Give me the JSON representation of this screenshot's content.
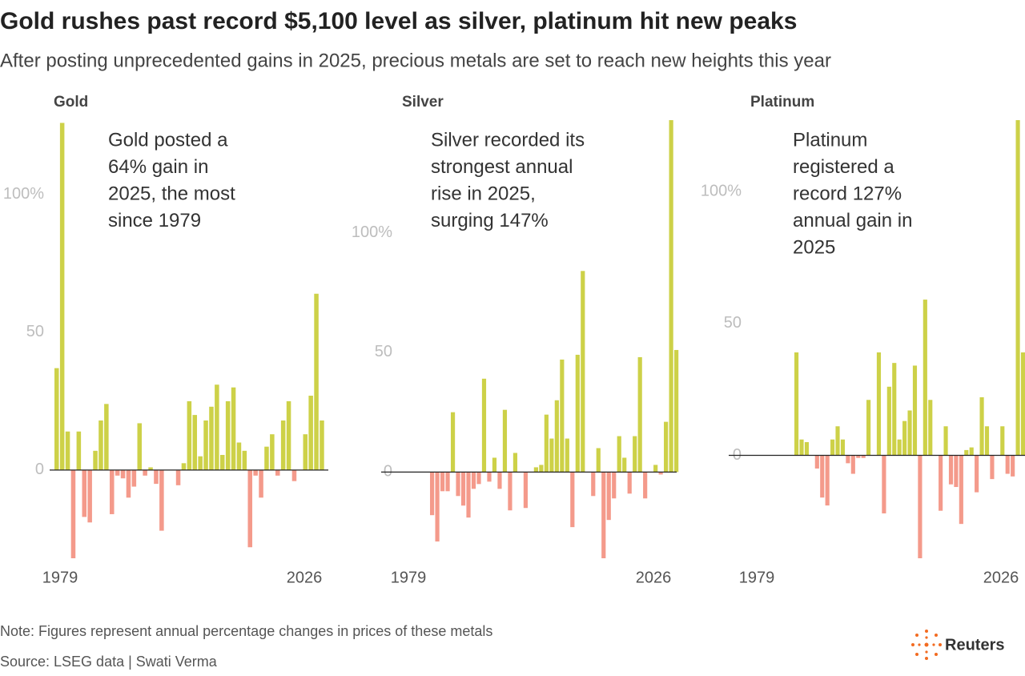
{
  "title": "Gold rushes past record $5,100 level as silver, platinum hit new peaks",
  "subtitle": "After posting unprecedented gains in 2025, precious metals are set to reach new heights this year",
  "note": "Note: Figures represent annual percentage changes in prices of these metals",
  "source": "Source: LSEG data | Swati Verma",
  "brand": "Reuters",
  "chart_data": [
    {
      "type": "bar",
      "title": "Gold",
      "annotation": [
        "Gold posted a",
        "64% gain in",
        "2025, the most",
        "since 1979"
      ],
      "categories": [
        null,
        "1979",
        null,
        null,
        null,
        null,
        null,
        null,
        null,
        null,
        null,
        null,
        null,
        null,
        null,
        null,
        null,
        null,
        null,
        null,
        null,
        null,
        null,
        null,
        null,
        null,
        null,
        null,
        null,
        null,
        null,
        null,
        null,
        null,
        null,
        null,
        null,
        null,
        null,
        null,
        null,
        null,
        null,
        null,
        null,
        null,
        null,
        null,
        "2026"
      ],
      "values": [
        37,
        126,
        14,
        -32,
        14,
        -17,
        -19,
        7,
        18,
        24,
        -16,
        -2,
        -3,
        -10,
        -6,
        17,
        -2,
        1,
        -5,
        -22,
        0,
        0,
        -5.5,
        2.5,
        25,
        20,
        5,
        18,
        23,
        31,
        5.5,
        25,
        30,
        10,
        7,
        -28,
        -2,
        -10,
        8.5,
        13,
        -2,
        18,
        25,
        -4,
        0,
        13,
        27,
        64,
        18
      ],
      "positive_color": "#cdd148",
      "negative_color": "#f49a8b",
      "ylim": [
        -32,
        127
      ],
      "yticks": [
        0,
        50,
        {
          "value": 100,
          "label": "100%"
        }
      ]
    },
    {
      "type": "bar",
      "title": "Silver",
      "annotation": [
        "Silver recorded its",
        "strongest annual",
        "rise in 2025,",
        "surging 147%"
      ],
      "categories": [
        null,
        "1979",
        null,
        null,
        null,
        null,
        null,
        null,
        null,
        null,
        null,
        null,
        null,
        null,
        null,
        null,
        null,
        null,
        null,
        null,
        null,
        null,
        null,
        null,
        null,
        null,
        null,
        null,
        null,
        null,
        null,
        null,
        null,
        null,
        null,
        null,
        null,
        null,
        null,
        null,
        null,
        null,
        null,
        null,
        null,
        null,
        null,
        null,
        "2026"
      ],
      "values": [
        null,
        -18,
        -29,
        -8,
        -8,
        25,
        -10,
        -14,
        -19,
        -7,
        -5,
        39,
        -4,
        6,
        -7,
        26,
        -16,
        8,
        0,
        -15,
        0,
        2,
        3,
        24,
        14,
        30,
        47,
        14,
        -23,
        49,
        84,
        0,
        -10,
        10,
        -36,
        -20,
        -11,
        15,
        6,
        -9,
        15,
        48,
        -11,
        0,
        3,
        -1,
        21,
        147,
        51
      ],
      "positive_color": "#cdd148",
      "negative_color": "#f49a8b",
      "ylim": [
        -36,
        147
      ],
      "yticks": [
        0,
        50,
        {
          "value": 100,
          "label": "100%"
        }
      ]
    },
    {
      "type": "bar",
      "title": "Platinum",
      "annotation": [
        "Platinum",
        "registered a",
        "record 127%",
        "annual gain in",
        "2025"
      ],
      "categories": [
        null,
        "1979",
        null,
        null,
        null,
        null,
        null,
        null,
        null,
        null,
        null,
        null,
        null,
        null,
        null,
        null,
        null,
        null,
        null,
        null,
        null,
        null,
        null,
        null,
        null,
        null,
        null,
        null,
        null,
        null,
        null,
        null,
        null,
        null,
        null,
        null,
        null,
        null,
        null,
        null,
        null,
        null,
        null,
        null,
        null,
        null,
        null,
        null,
        "2026"
      ],
      "values": [
        null,
        null,
        null,
        null,
        39,
        6,
        5,
        0,
        -5,
        -16,
        -19,
        6,
        11,
        6,
        -3,
        -7,
        -1,
        -1,
        21,
        0,
        39,
        -22,
        26,
        35,
        6,
        13,
        17,
        34,
        -39,
        59,
        21,
        0,
        -21,
        11,
        -11,
        -12,
        -26,
        2,
        3,
        -14,
        22,
        11,
        -9,
        0,
        11,
        -7,
        -8,
        127,
        39
      ],
      "positive_color": "#cdd148",
      "negative_color": "#f49a8b",
      "ylim": [
        -39,
        127
      ],
      "yticks": [
        0,
        50,
        {
          "value": 100,
          "label": "100%"
        }
      ]
    }
  ]
}
